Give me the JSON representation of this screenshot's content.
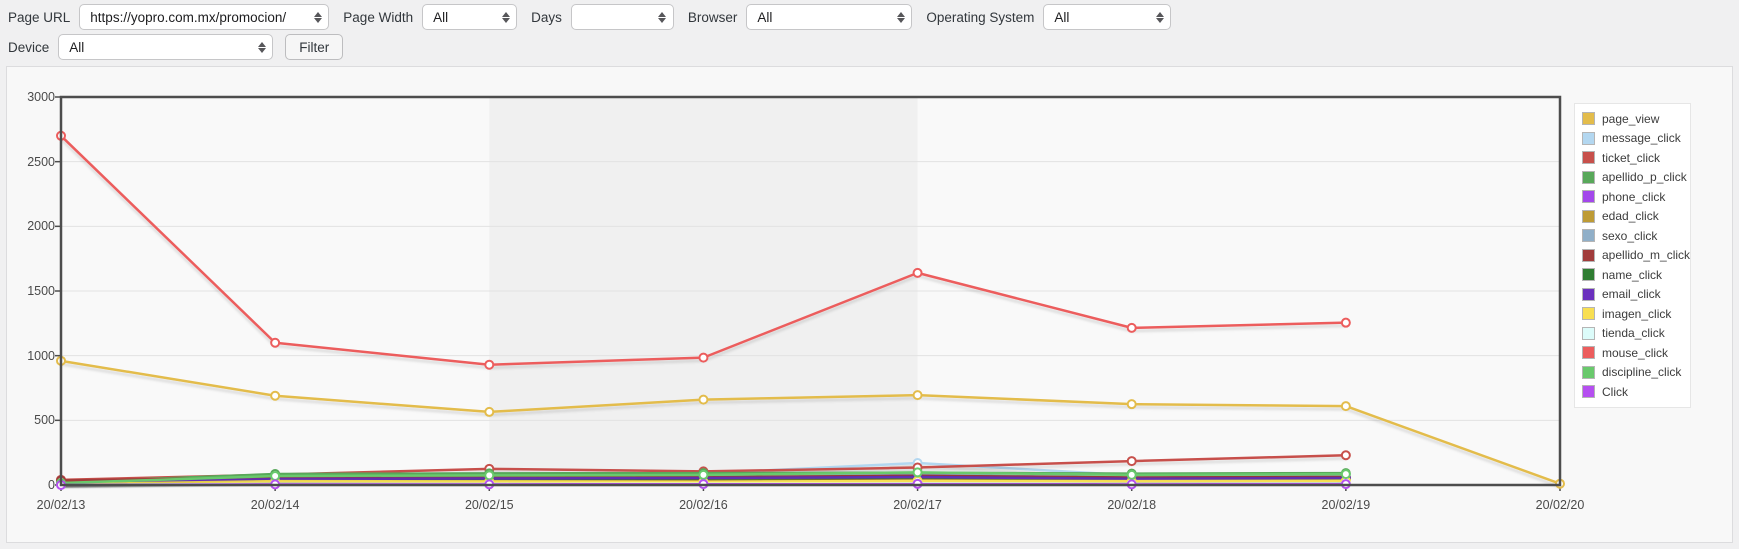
{
  "toolbar": {
    "page_url": {
      "label": "Page URL",
      "value": "https://yopro.com.mx/promocion/"
    },
    "page_width": {
      "label": "Page Width",
      "value": "All"
    },
    "days": {
      "label": "Days",
      "value": ""
    },
    "browser": {
      "label": "Browser",
      "value": "All"
    },
    "operating_system": {
      "label": "Operating System",
      "value": "All"
    },
    "device": {
      "label": "Device",
      "value": "All"
    },
    "filter_button_label": "Filter"
  },
  "chart_data": {
    "type": "line",
    "x": [
      "20/02/13",
      "20/02/14",
      "20/02/15",
      "20/02/16",
      "20/02/17",
      "20/02/18",
      "20/02/19",
      "20/02/20"
    ],
    "ylim": [
      0,
      3000
    ],
    "y_ticks": [
      0,
      500,
      1000,
      1500,
      2000,
      2500,
      3000
    ],
    "grid": true,
    "legend_position": "right",
    "band": {
      "from_index": 2,
      "to_index": 4,
      "color": "#f0f0f0"
    },
    "plot_bg": "#f9f9f9",
    "grid_color": "#e2e2e2",
    "border_color": "#4d4d4d",
    "series": [
      {
        "name": "page_view",
        "color": "#e3bc4b",
        "values": [
          960,
          690,
          565,
          660,
          695,
          625,
          610,
          10
        ]
      },
      {
        "name": "message_click",
        "color": "#b3d7f0",
        "values": [
          15,
          55,
          65,
          90,
          170,
          75,
          80,
          null
        ]
      },
      {
        "name": "ticket_click",
        "color": "#c7504b",
        "values": [
          40,
          80,
          125,
          105,
          135,
          185,
          230,
          null
        ]
      },
      {
        "name": "apellido_p_click",
        "color": "#58a85a",
        "values": [
          20,
          85,
          90,
          92,
          95,
          88,
          92,
          null
        ]
      },
      {
        "name": "phone_click",
        "color": "#a347eb",
        "values": [
          10,
          48,
          52,
          55,
          65,
          52,
          56,
          null
        ]
      },
      {
        "name": "edad_click",
        "color": "#be9b35",
        "values": [
          8,
          38,
          42,
          44,
          50,
          42,
          46,
          null
        ]
      },
      {
        "name": "sexo_click",
        "color": "#90afc8",
        "values": [
          12,
          52,
          58,
          62,
          78,
          58,
          62,
          null
        ]
      },
      {
        "name": "apellido_m_click",
        "color": "#a13c3b",
        "values": [
          35,
          58,
          62,
          60,
          72,
          58,
          62,
          null
        ]
      },
      {
        "name": "name_click",
        "color": "#2f7d32",
        "values": [
          6,
          42,
          46,
          50,
          58,
          46,
          50,
          null
        ]
      },
      {
        "name": "email_click",
        "color": "#6b30be",
        "values": [
          10,
          46,
          50,
          54,
          62,
          48,
          54,
          null
        ]
      },
      {
        "name": "imagen_click",
        "color": "#f8df52",
        "values": [
          5,
          30,
          28,
          25,
          32,
          30,
          33,
          null
        ]
      },
      {
        "name": "tienda_click",
        "color": "#dcfcfa",
        "values": [
          2,
          8,
          8,
          10,
          12,
          8,
          10,
          null
        ]
      },
      {
        "name": "mouse_click",
        "color": "#ec5d5d",
        "values": [
          2700,
          1100,
          930,
          985,
          1640,
          1215,
          1255,
          null
        ]
      },
      {
        "name": "discipline_click",
        "color": "#69c96c",
        "values": [
          15,
          70,
          74,
          78,
          98,
          78,
          84,
          null
        ]
      },
      {
        "name": "Click",
        "color": "#b54ff0",
        "values": [
          0,
          5,
          5,
          7,
          9,
          5,
          7,
          null
        ]
      }
    ]
  }
}
